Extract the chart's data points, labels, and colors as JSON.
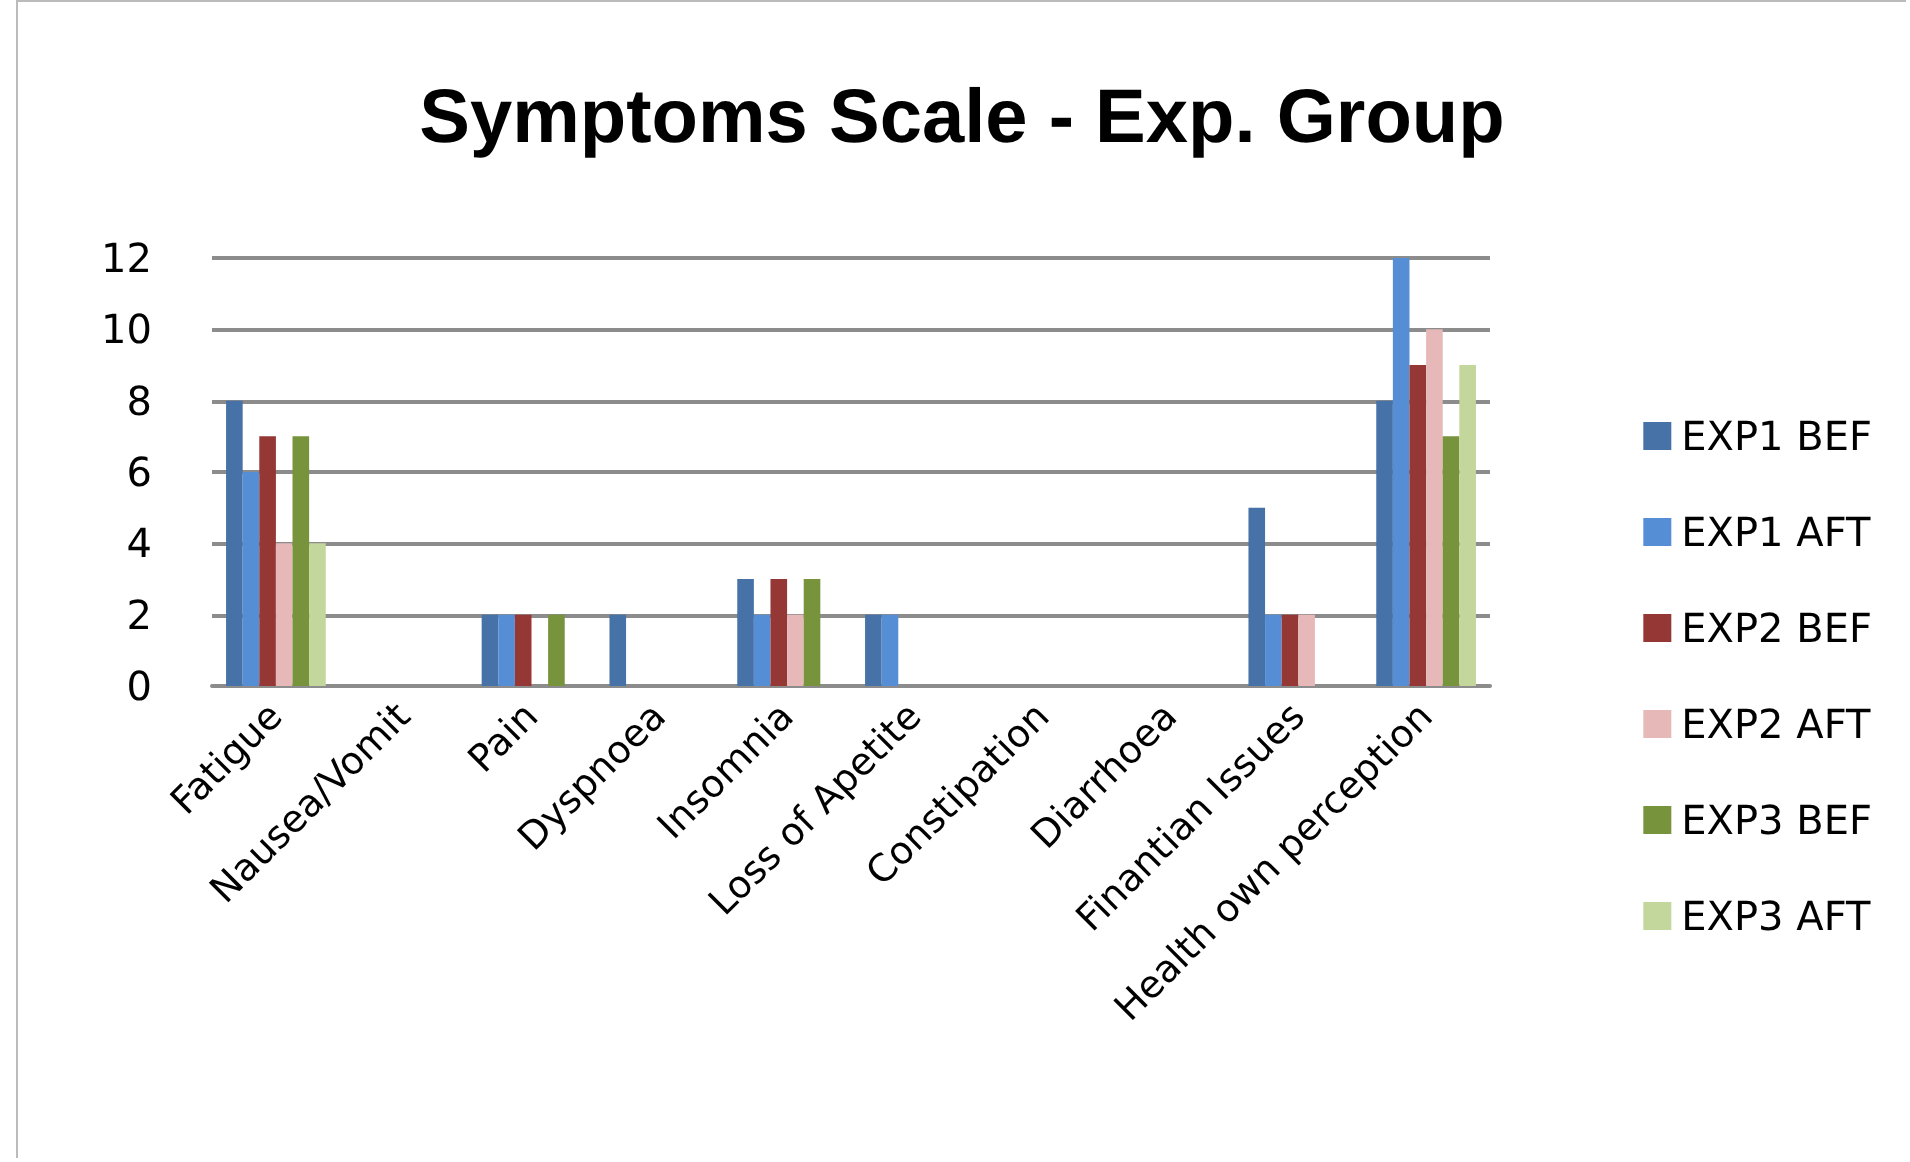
{
  "chart_data": {
    "type": "bar",
    "title": "Symptoms Scale - Exp. Group",
    "categories": [
      "Fatigue",
      "Nausea/Vomit",
      "Pain",
      "Dyspnoea",
      "Insomnia",
      "Loss of Apetite",
      "Constipation",
      "Diarrhoea",
      "Finantian Issues",
      "Health own perception"
    ],
    "series": [
      {
        "name": "EXP1 BEF",
        "color": "#4672a8",
        "values": [
          8,
          0,
          2,
          2,
          3,
          2,
          0,
          0,
          5,
          8
        ]
      },
      {
        "name": "EXP1 AFT",
        "color": "#558ed5",
        "values": [
          6,
          0,
          2,
          0,
          2,
          2,
          0,
          0,
          2,
          12
        ]
      },
      {
        "name": "EXP2 BEF",
        "color": "#953735",
        "values": [
          7,
          0,
          2,
          0,
          3,
          0,
          0,
          0,
          2,
          9
        ]
      },
      {
        "name": "EXP2 AFT",
        "color": "#e6b9b8",
        "values": [
          4,
          0,
          0,
          0,
          2,
          0,
          0,
          0,
          2,
          10
        ]
      },
      {
        "name": "EXP3 BEF",
        "color": "#77933c",
        "values": [
          7,
          0,
          2,
          0,
          3,
          0,
          0,
          0,
          0,
          7
        ]
      },
      {
        "name": "EXP3 AFT",
        "color": "#c3d69b",
        "values": [
          4,
          0,
          0,
          0,
          0,
          0,
          0,
          0,
          0,
          9
        ]
      }
    ],
    "ylim": [
      0,
      12
    ],
    "yticks": [
      0,
      2,
      4,
      6,
      8,
      10,
      12
    ],
    "grid": "y",
    "legend": "right"
  }
}
